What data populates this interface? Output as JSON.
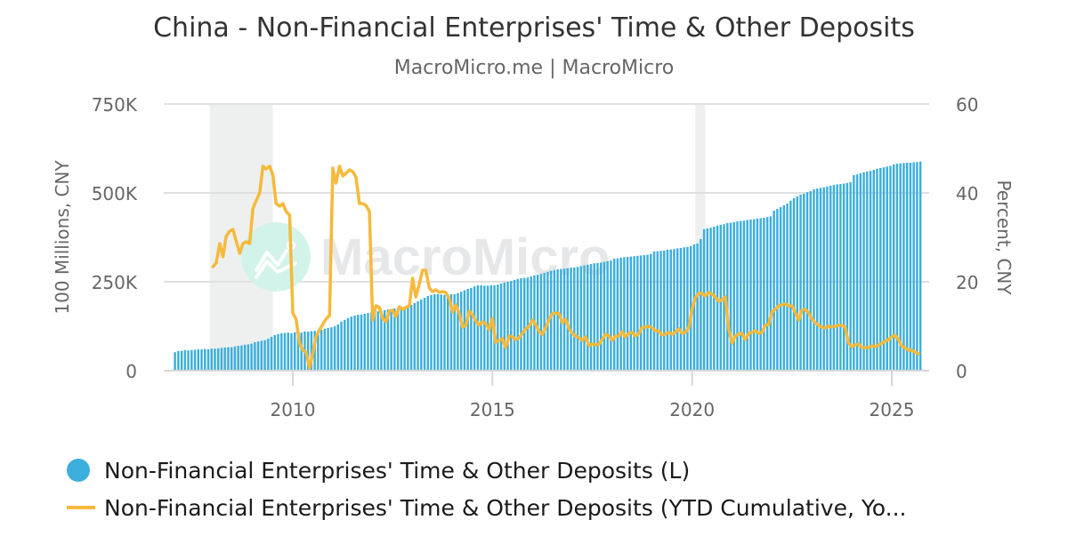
{
  "header": {
    "title": "China - Non-Financial Enterprises' Time & Other Deposits",
    "subtitle": "MacroMicro.me | MacroMicro"
  },
  "watermark": {
    "text": "MacroMicro"
  },
  "legend": {
    "items": [
      {
        "label": "Non-Financial Enterprises' Time & Other Deposits (L)",
        "color": "#3caedb",
        "marker": "circle"
      },
      {
        "label": "Non-Financial Enterprises' Time & Other Deposits (YTD Cumulative, Yo...",
        "color": "#f6b93b",
        "marker": "line"
      }
    ]
  },
  "colors": {
    "bars": "#3caedb",
    "line": "#f6b93b",
    "grid": "#e0e0e0",
    "recession": "#eef0f0",
    "axis_text": "#666666"
  },
  "chart_data": {
    "type": "bar+line",
    "title": "China - Non-Financial Enterprises' Time & Other Deposits",
    "subtitle": "MacroMicro.me | MacroMicro",
    "xlabel": "",
    "x_ticks": [
      "2010",
      "2015",
      "2020",
      "2025"
    ],
    "x_range": [
      2006.7,
      2025.95
    ],
    "y_left": {
      "label": "100 Millions, CNY",
      "ticks": [
        "0",
        "250K",
        "500K",
        "750K"
      ],
      "tick_values": [
        0,
        250000,
        500000,
        750000
      ],
      "range": [
        0,
        750000
      ]
    },
    "y_right": {
      "label": "Percent, CNY",
      "ticks": [
        "0",
        "20",
        "40",
        "60"
      ],
      "tick_values": [
        0,
        20,
        40,
        60
      ],
      "range": [
        0,
        60
      ]
    },
    "grid": true,
    "legend_position": "bottom",
    "recession_bands": [
      [
        2007.92,
        2009.5
      ],
      [
        2020.08,
        2020.33
      ]
    ],
    "series": [
      {
        "name": "Non-Financial Enterprises' Time & Other Deposits (L)",
        "type": "bar",
        "axis": "left",
        "start": "2007-01",
        "frequency": "monthly",
        "values_k": [
          52,
          55,
          56,
          58,
          57,
          58,
          59,
          60,
          60,
          61,
          60,
          62,
          62,
          63,
          64,
          65,
          66,
          66,
          68,
          70,
          71,
          73,
          74,
          76,
          80,
          82,
          84,
          86,
          90,
          95,
          100,
          103,
          105,
          106,
          107,
          105,
          108,
          108,
          107,
          110,
          110,
          111,
          112,
          112,
          115,
          118,
          120,
          122,
          125,
          130,
          138,
          143,
          148,
          152,
          155,
          157,
          158,
          160,
          162,
          163,
          165,
          167,
          168,
          170,
          172,
          173,
          175,
          176,
          178,
          180,
          182,
          185,
          190,
          195,
          200,
          205,
          210,
          213,
          215,
          215,
          214,
          213,
          214,
          215,
          215,
          218,
          222,
          226,
          230,
          233,
          237,
          240,
          240,
          239,
          239,
          240,
          240,
          242,
          245,
          248,
          250,
          252,
          255,
          258,
          260,
          261,
          262,
          265,
          268,
          270,
          272,
          275,
          278,
          281,
          283,
          285,
          286,
          287,
          288,
          290,
          290,
          292,
          294,
          296,
          298,
          300,
          302,
          303,
          304,
          306,
          308,
          310,
          315,
          316,
          318,
          319,
          320,
          321,
          322,
          323,
          324,
          325,
          326,
          328,
          335,
          336,
          337,
          338,
          340,
          341,
          342,
          344,
          345,
          347,
          348,
          350,
          355,
          358,
          370,
          398,
          400,
          402,
          405,
          408,
          410,
          412,
          415,
          416,
          418,
          420,
          421,
          422,
          424,
          425,
          426,
          428,
          429,
          430,
          432,
          434,
          450,
          455,
          460,
          465,
          470,
          478,
          485,
          490,
          495,
          498,
          502,
          505,
          510,
          512,
          514,
          516,
          518,
          520,
          522,
          524,
          525,
          526,
          528,
          530,
          550,
          552,
          555,
          558,
          560,
          562,
          565,
          568,
          570,
          572,
          574,
          576,
          580,
          582,
          583,
          584,
          585,
          585,
          586,
          587,
          588
        ]
      },
      {
        "name": "Non-Financial Enterprises' Time & Other Deposits (YTD Cumulative, YoY)",
        "type": "line",
        "axis": "right",
        "points": [
          [
            2008.0,
            23.4
          ],
          [
            2008.08,
            24.2
          ],
          [
            2008.17,
            28.6
          ],
          [
            2008.25,
            25.6
          ],
          [
            2008.33,
            30.2
          ],
          [
            2008.42,
            31.4
          ],
          [
            2008.5,
            31.8
          ],
          [
            2008.58,
            29.2
          ],
          [
            2008.67,
            26.4
          ],
          [
            2008.75,
            28.6
          ],
          [
            2008.83,
            29.0
          ],
          [
            2008.92,
            28.6
          ],
          [
            2009.0,
            36.4
          ],
          [
            2009.08,
            38.2
          ],
          [
            2009.17,
            40.0
          ],
          [
            2009.25,
            46.0
          ],
          [
            2009.33,
            45.4
          ],
          [
            2009.42,
            46.0
          ],
          [
            2009.5,
            44.0
          ],
          [
            2009.58,
            37.6
          ],
          [
            2009.67,
            37.0
          ],
          [
            2009.75,
            37.6
          ],
          [
            2009.83,
            35.8
          ],
          [
            2009.92,
            35.0
          ],
          [
            2010.0,
            13.0
          ],
          [
            2010.08,
            11.6
          ],
          [
            2010.17,
            6.2
          ],
          [
            2010.25,
            4.6
          ],
          [
            2010.33,
            4.2
          ],
          [
            2010.42,
            0.6
          ],
          [
            2010.5,
            3.8
          ],
          [
            2010.58,
            7.6
          ],
          [
            2010.67,
            9.2
          ],
          [
            2010.75,
            10.4
          ],
          [
            2010.83,
            11.6
          ],
          [
            2010.92,
            12.4
          ],
          [
            2011.0,
            45.6
          ],
          [
            2011.08,
            42.2
          ],
          [
            2011.17,
            46.0
          ],
          [
            2011.25,
            43.8
          ],
          [
            2011.33,
            44.4
          ],
          [
            2011.42,
            45.2
          ],
          [
            2011.5,
            44.8
          ],
          [
            2011.58,
            43.6
          ],
          [
            2011.67,
            37.6
          ],
          [
            2011.75,
            37.6
          ],
          [
            2011.83,
            37.2
          ],
          [
            2011.92,
            35.8
          ],
          [
            2012.0,
            11.4
          ],
          [
            2012.08,
            14.6
          ],
          [
            2012.17,
            14.2
          ],
          [
            2012.25,
            11.8
          ],
          [
            2012.33,
            11.0
          ],
          [
            2012.42,
            13.4
          ],
          [
            2012.5,
            13.6
          ],
          [
            2012.58,
            12.2
          ],
          [
            2012.67,
            14.4
          ],
          [
            2012.75,
            13.8
          ],
          [
            2012.83,
            14.2
          ],
          [
            2012.92,
            14.6
          ],
          [
            2013.0,
            20.8
          ],
          [
            2013.08,
            16.6
          ],
          [
            2013.17,
            19.6
          ],
          [
            2013.25,
            22.6
          ],
          [
            2013.33,
            22.6
          ],
          [
            2013.42,
            18.6
          ],
          [
            2013.5,
            17.8
          ],
          [
            2013.58,
            18.2
          ],
          [
            2013.67,
            17.6
          ],
          [
            2013.75,
            17.8
          ],
          [
            2013.83,
            17.6
          ],
          [
            2013.92,
            16.2
          ],
          [
            2014.0,
            13.2
          ],
          [
            2014.08,
            14.8
          ],
          [
            2014.17,
            12.8
          ],
          [
            2014.25,
            9.8
          ],
          [
            2014.33,
            10.2
          ],
          [
            2014.42,
            13.4
          ],
          [
            2014.5,
            12.6
          ],
          [
            2014.58,
            11.2
          ],
          [
            2014.67,
            10.2
          ],
          [
            2014.75,
            11.0
          ],
          [
            2014.83,
            10.6
          ],
          [
            2014.92,
            9.2
          ],
          [
            2015.0,
            11.8
          ],
          [
            2015.08,
            6.4
          ],
          [
            2015.17,
            6.8
          ],
          [
            2015.25,
            7.2
          ],
          [
            2015.33,
            5.2
          ],
          [
            2015.42,
            7.8
          ],
          [
            2015.5,
            7.6
          ],
          [
            2015.58,
            7.0
          ],
          [
            2015.67,
            7.4
          ],
          [
            2015.75,
            8.4
          ],
          [
            2015.83,
            9.4
          ],
          [
            2015.92,
            10.0
          ],
          [
            2016.0,
            11.4
          ],
          [
            2016.08,
            10.4
          ],
          [
            2016.17,
            8.8
          ],
          [
            2016.25,
            8.2
          ],
          [
            2016.33,
            9.6
          ],
          [
            2016.42,
            11.6
          ],
          [
            2016.5,
            12.8
          ],
          [
            2016.58,
            13.0
          ],
          [
            2016.67,
            12.8
          ],
          [
            2016.75,
            10.8
          ],
          [
            2016.83,
            11.6
          ],
          [
            2016.92,
            9.4
          ],
          [
            2017.0,
            8.4
          ],
          [
            2017.08,
            7.8
          ],
          [
            2017.17,
            7.4
          ],
          [
            2017.25,
            6.8
          ],
          [
            2017.33,
            7.6
          ],
          [
            2017.42,
            5.6
          ],
          [
            2017.5,
            6.0
          ],
          [
            2017.58,
            5.8
          ],
          [
            2017.67,
            6.0
          ],
          [
            2017.75,
            7.0
          ],
          [
            2017.83,
            8.2
          ],
          [
            2017.92,
            7.8
          ],
          [
            2018.0,
            6.8
          ],
          [
            2018.08,
            7.8
          ],
          [
            2018.17,
            7.8
          ],
          [
            2018.25,
            8.8
          ],
          [
            2018.33,
            7.6
          ],
          [
            2018.42,
            8.4
          ],
          [
            2018.5,
            8.6
          ],
          [
            2018.58,
            7.8
          ],
          [
            2018.67,
            8.4
          ],
          [
            2018.75,
            9.8
          ],
          [
            2018.83,
            9.8
          ],
          [
            2018.92,
            10.0
          ],
          [
            2019.0,
            9.6
          ],
          [
            2019.08,
            9.0
          ],
          [
            2019.17,
            8.8
          ],
          [
            2019.25,
            8.0
          ],
          [
            2019.33,
            8.2
          ],
          [
            2019.42,
            8.6
          ],
          [
            2019.5,
            8.2
          ],
          [
            2019.58,
            8.6
          ],
          [
            2019.67,
            9.4
          ],
          [
            2019.75,
            8.4
          ],
          [
            2019.83,
            8.6
          ],
          [
            2019.92,
            9.8
          ],
          [
            2020.0,
            14.0
          ],
          [
            2020.08,
            16.4
          ],
          [
            2020.17,
            17.4
          ],
          [
            2020.25,
            17.4
          ],
          [
            2020.33,
            16.8
          ],
          [
            2020.42,
            17.6
          ],
          [
            2020.5,
            17.2
          ],
          [
            2020.58,
            16.6
          ],
          [
            2020.67,
            15.6
          ],
          [
            2020.75,
            16.0
          ],
          [
            2020.83,
            16.6
          ],
          [
            2020.92,
            9.2
          ],
          [
            2021.0,
            6.2
          ],
          [
            2021.08,
            7.8
          ],
          [
            2021.17,
            8.2
          ],
          [
            2021.25,
            8.4
          ],
          [
            2021.33,
            7.0
          ],
          [
            2021.42,
            8.4
          ],
          [
            2021.5,
            8.6
          ],
          [
            2021.58,
            9.0
          ],
          [
            2021.67,
            8.4
          ],
          [
            2021.75,
            8.6
          ],
          [
            2021.83,
            10.2
          ],
          [
            2021.92,
            10.4
          ],
          [
            2022.0,
            13.2
          ],
          [
            2022.08,
            13.8
          ],
          [
            2022.17,
            14.6
          ],
          [
            2022.25,
            14.8
          ],
          [
            2022.33,
            15.0
          ],
          [
            2022.42,
            14.6
          ],
          [
            2022.5,
            14.6
          ],
          [
            2022.58,
            13.2
          ],
          [
            2022.67,
            11.4
          ],
          [
            2022.75,
            13.6
          ],
          [
            2022.83,
            13.8
          ],
          [
            2022.92,
            13.0
          ],
          [
            2023.0,
            11.6
          ],
          [
            2023.08,
            10.8
          ],
          [
            2023.17,
            10.2
          ],
          [
            2023.25,
            9.8
          ],
          [
            2023.33,
            9.6
          ],
          [
            2023.42,
            10.0
          ],
          [
            2023.5,
            9.8
          ],
          [
            2023.58,
            10.0
          ],
          [
            2023.67,
            10.2
          ],
          [
            2023.75,
            10.2
          ],
          [
            2023.83,
            9.8
          ],
          [
            2023.92,
            6.2
          ],
          [
            2024.0,
            5.4
          ],
          [
            2024.08,
            5.8
          ],
          [
            2024.17,
            6.0
          ],
          [
            2024.25,
            5.2
          ],
          [
            2024.33,
            5.2
          ],
          [
            2024.42,
            5.2
          ],
          [
            2024.5,
            5.6
          ],
          [
            2024.58,
            5.4
          ],
          [
            2024.67,
            5.8
          ],
          [
            2024.75,
            6.2
          ],
          [
            2024.83,
            6.6
          ],
          [
            2024.92,
            7.0
          ],
          [
            2025.0,
            7.6
          ],
          [
            2025.08,
            8.0
          ],
          [
            2025.17,
            7.0
          ],
          [
            2025.25,
            5.6
          ],
          [
            2025.33,
            5.2
          ],
          [
            2025.42,
            4.6
          ],
          [
            2025.5,
            4.6
          ],
          [
            2025.58,
            4.2
          ],
          [
            2025.67,
            3.8
          ]
        ]
      }
    ]
  }
}
